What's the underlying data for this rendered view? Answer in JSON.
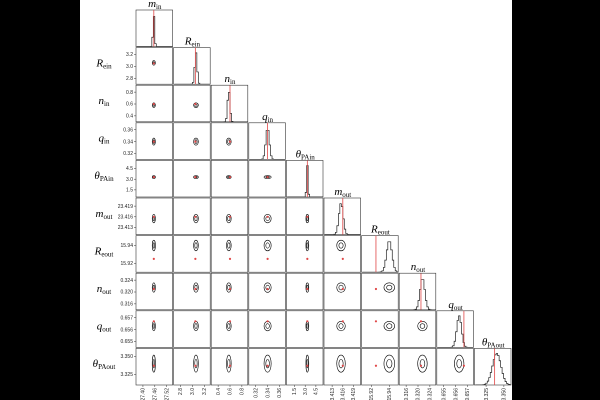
{
  "chart_data": {
    "type": "corner",
    "truth_color": "#e04848",
    "contour_color": "#000000",
    "hist_color": "#222222",
    "parameters": [
      {
        "symbol": "m",
        "subscript": "in",
        "truth": 27.455,
        "median": 27.455,
        "sd": 0.004,
        "lim": [
          27.37,
          27.55
        ],
        "ticks": [
          {
            "value": 27.4,
            "label": "27.40"
          },
          27.46,
          27.52
        ]
      },
      {
        "symbol": "R",
        "subscript": "ein",
        "truth": 3.05,
        "median": 3.06,
        "sd": 0.02,
        "lim": [
          2.7,
          3.3
        ],
        "ticks": [
          2.8,
          {
            "value": 3,
            "label": "3.0"
          },
          3.2
        ]
      },
      {
        "symbol": "n",
        "subscript": "in",
        "truth": 0.6,
        "median": 0.58,
        "sd": 0.02,
        "lim": [
          0.3,
          0.9
        ],
        "ticks": [
          0.4,
          0.6,
          0.8
        ]
      },
      {
        "symbol": "q",
        "subscript": "in",
        "truth": 0.34,
        "median": 0.34,
        "sd": 0.003,
        "lim": [
          0.31,
          0.37
        ],
        "ticks": [
          0.32,
          0.34,
          0.36
        ]
      },
      {
        "symbol": "θ",
        "subscript": "PAin",
        "truth": 3.3,
        "median": 3.3,
        "sd": 0.1,
        "lim": [
          0.5,
          5.5
        ],
        "ticks": [
          1.5,
          {
            "value": 3,
            "label": "3.0"
          },
          4.5
        ]
      },
      {
        "symbol": "m",
        "subscript": "out",
        "truth": 23.416,
        "median": 23.4155,
        "sd": 0.0006,
        "lim": [
          23.411,
          23.421
        ],
        "ticks": [
          23.413,
          23.416,
          23.419
        ]
      },
      {
        "symbol": "R",
        "subscript": "eout",
        "truth": 15.925,
        "median": 15.94,
        "sd": 0.003,
        "lim": [
          15.91,
          15.95
        ],
        "ticks": [
          15.92,
          15.94
        ]
      },
      {
        "symbol": "n",
        "subscript": "out",
        "truth": 0.321,
        "median": 0.3215,
        "sd": 0.0008,
        "lim": [
          0.314,
          0.326
        ],
        "ticks": [
          0.316,
          {
            "value": 0.32,
            "label": "0.320"
          },
          0.324
        ]
      },
      {
        "symbol": "q",
        "subscript": "out",
        "truth": 0.6567,
        "median": 0.6563,
        "sd": 0.0002,
        "lim": [
          0.6545,
          0.6575
        ],
        "ticks": [
          0.655,
          0.656,
          0.657
        ]
      },
      {
        "symbol": "θ",
        "subscript": "PAout",
        "truth": 3.337,
        "median": 3.34,
        "sd": 0.006,
        "lim": [
          3.31,
          3.36
        ],
        "ticks": [
          3.325,
          {
            "value": 3.35,
            "label": "3.350"
          }
        ]
      }
    ]
  }
}
